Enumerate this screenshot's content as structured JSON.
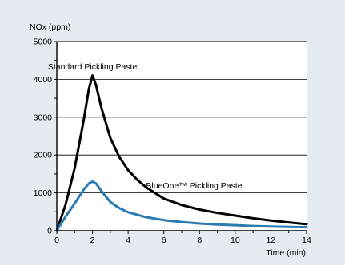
{
  "chart_data": {
    "type": "line",
    "ylabel": "NOx (ppm)",
    "xlabel": "Time (min)",
    "xlim": [
      0,
      14
    ],
    "ylim": [
      0,
      5000
    ],
    "x_ticks": [
      "0",
      "2",
      "4",
      "6",
      "8",
      "10",
      "12",
      "14"
    ],
    "y_ticks": [
      "0",
      "1000",
      "2000",
      "3000",
      "4000",
      "5000"
    ],
    "grid": "horizontal",
    "series": [
      {
        "name": "Standard Pickling Paste",
        "color": "#000000",
        "x": [
          0,
          0.5,
          1,
          1.5,
          1.8,
          2,
          2.2,
          2.5,
          3,
          3.5,
          4,
          4.5,
          5,
          6,
          7,
          8,
          9,
          10,
          11,
          12,
          13,
          14
        ],
        "y": [
          0,
          700,
          1650,
          2900,
          3750,
          4100,
          3850,
          3250,
          2450,
          1950,
          1600,
          1350,
          1150,
          850,
          680,
          560,
          470,
          400,
          330,
          270,
          220,
          170
        ]
      },
      {
        "name": "BlueOne™ Pickling Paste",
        "color": "#2b7ab0",
        "x": [
          0,
          0.5,
          1,
          1.5,
          1.8,
          2,
          2.2,
          2.5,
          3,
          3.5,
          4,
          5,
          6,
          7,
          8,
          9,
          10,
          11,
          12,
          13,
          14
        ],
        "y": [
          0,
          380,
          720,
          1080,
          1250,
          1300,
          1250,
          1050,
          760,
          600,
          490,
          360,
          280,
          230,
          190,
          165,
          145,
          125,
          110,
          100,
          90
        ]
      }
    ],
    "annotations": [
      {
        "text": "Standard Pickling Paste",
        "x": 2,
        "y": 4350
      },
      {
        "text": "BlueOne™ Pickling Paste",
        "x": 5,
        "y": 1200
      }
    ]
  }
}
